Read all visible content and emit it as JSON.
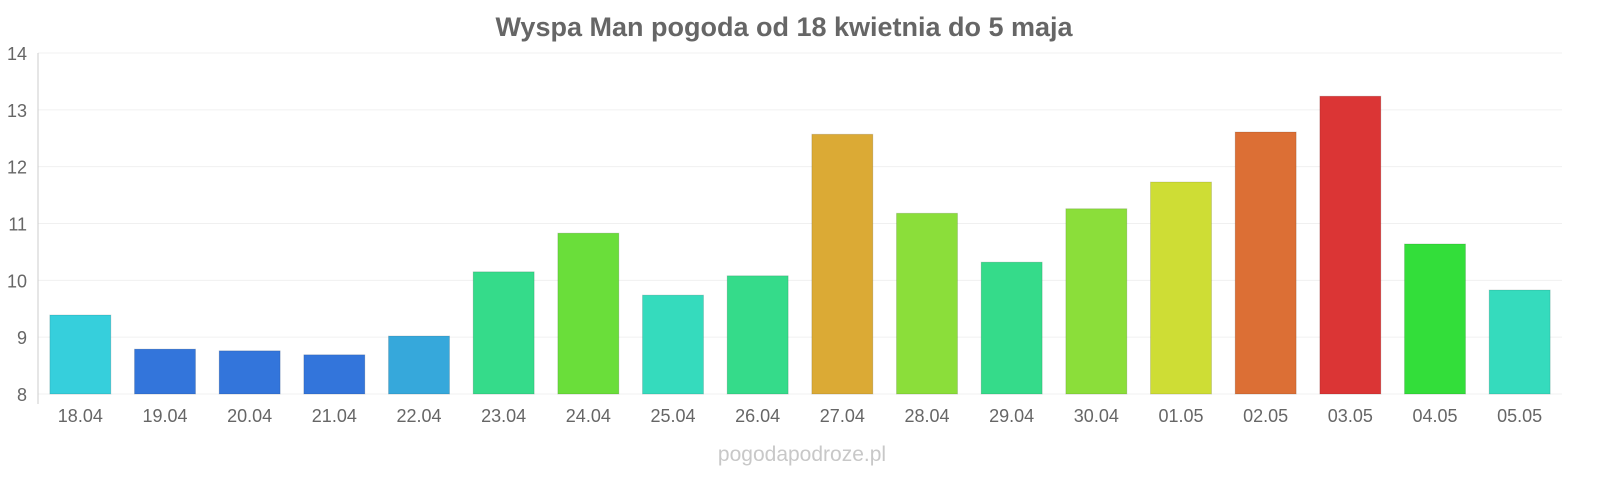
{
  "chart_data": {
    "type": "bar",
    "title": "Wyspa Man pogoda od 18 kwietnia do 5 maja",
    "xlabel": "",
    "ylabel": "",
    "ylim": [
      8,
      14
    ],
    "yticks": [
      8,
      9,
      10,
      11,
      12,
      13,
      14
    ],
    "grid": true,
    "categories": [
      "18.04",
      "19.04",
      "20.04",
      "21.04",
      "22.04",
      "23.04",
      "24.04",
      "25.04",
      "26.04",
      "27.04",
      "28.04",
      "29.04",
      "30.04",
      "01.05",
      "02.05",
      "03.05",
      "04.05",
      "05.05"
    ],
    "values": [
      9.39,
      8.79,
      8.76,
      8.69,
      9.02,
      10.15,
      10.83,
      9.74,
      10.08,
      12.57,
      11.18,
      10.32,
      11.26,
      11.73,
      12.61,
      13.24,
      10.64,
      9.83
    ],
    "colors": [
      "#36cfdc",
      "#3375db",
      "#3375db",
      "#3375db",
      "#36a8db",
      "#35db8a",
      "#6ade3a",
      "#35dbbd",
      "#35db8a",
      "#dbaa35",
      "#8bde3a",
      "#35db8a",
      "#8bde3a",
      "#cedd35",
      "#dc6f35",
      "#db3535",
      "#33de3a",
      "#35dbbd"
    ]
  },
  "watermark": "pogodapodroze.pl"
}
